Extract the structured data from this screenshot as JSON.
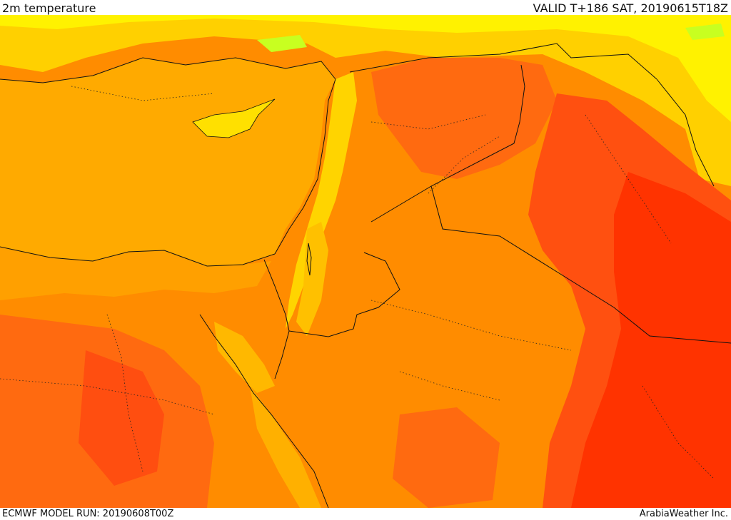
{
  "header": {
    "field_title": "2m temperature",
    "valid_label": "VALID T+186 SAT, 20190615T18Z"
  },
  "footer": {
    "model_run": "ECMWF MODEL RUN: 20190608T00Z",
    "credit": "ArabiaWeather Inc."
  },
  "map": {
    "region": "Eastern Mediterranean, Levant, Egypt, northern Arabia",
    "colors": {
      "sea": "#FFAA00",
      "cool_yellow": "#FFFF00",
      "light_yellow": "#FFE000",
      "warm_orange": "#FF9A00",
      "orange": "#FF8000",
      "hot_red_orange": "#FF5A10",
      "hottest_red": "#FF3300",
      "faint_green": "#C8FF20",
      "border_line": "#111111"
    }
  }
}
